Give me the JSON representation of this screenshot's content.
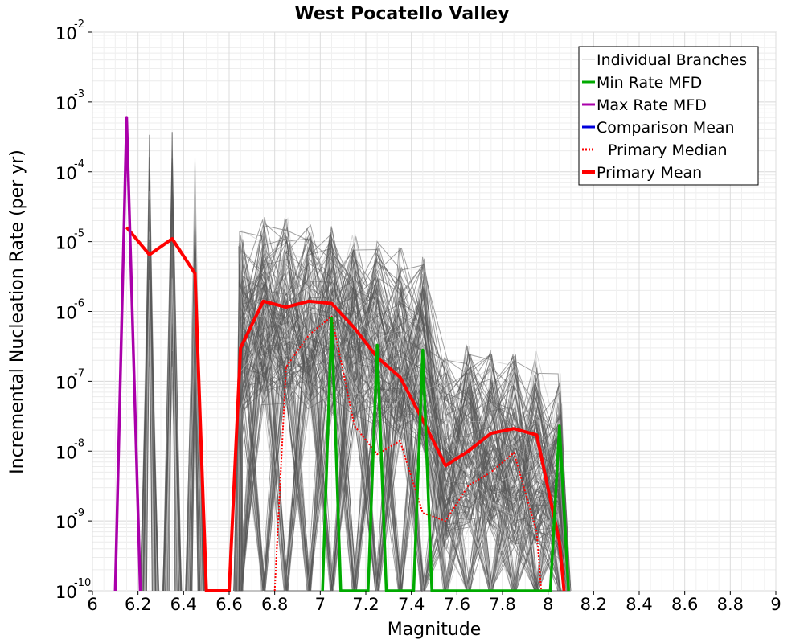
{
  "chart_data": {
    "type": "line",
    "title": "West Pocatello Valley",
    "xlabel": "Magnitude",
    "ylabel": "Incremental Nucleation Rate (per yr)",
    "xlim": [
      6,
      9
    ],
    "ylim": [
      1e-10,
      0.01
    ],
    "yscale": "log",
    "grid": true,
    "legend_position": "top-right",
    "x_ticks": [
      "6",
      "6.2",
      "6.4",
      "6.6",
      "6.8",
      "7",
      "7.2",
      "7.4",
      "7.6",
      "7.8",
      "8",
      "8.2",
      "8.4",
      "8.6",
      "8.8",
      "9"
    ],
    "y_ticks": [
      {
        "base": "10",
        "exp": "-10",
        "value": 1e-10
      },
      {
        "base": "10",
        "exp": "-9",
        "value": 1e-09
      },
      {
        "base": "10",
        "exp": "-8",
        "value": 1e-08
      },
      {
        "base": "10",
        "exp": "-7",
        "value": 1e-07
      },
      {
        "base": "10",
        "exp": "-6",
        "value": 1e-06
      },
      {
        "base": "10",
        "exp": "-5",
        "value": 1e-05
      },
      {
        "base": "10",
        "exp": "-4",
        "value": 0.0001
      },
      {
        "base": "10",
        "exp": "-3",
        "value": 0.001
      },
      {
        "base": "10",
        "exp": "-2",
        "value": 0.01
      }
    ],
    "legend": [
      {
        "name": "Individual Branches",
        "color": "#c8c8c8",
        "style": "thin"
      },
      {
        "name": "Min Rate MFD",
        "color": "#00aa00",
        "style": "solid"
      },
      {
        "name": "Max Rate MFD",
        "color": "#aa00aa",
        "style": "solid"
      },
      {
        "name": "Comparison Mean",
        "color": "#0000dd",
        "style": "solid"
      },
      {
        "name": "Primary Median",
        "color": "#ff0000",
        "style": "dotted"
      },
      {
        "name": "Primary Mean",
        "color": "#ff0000",
        "style": "thick"
      }
    ],
    "series": [
      {
        "name": "Primary Mean",
        "color": "#ff0000",
        "points": [
          [
            6.15,
            1.6e-05
          ],
          [
            6.25,
            6.5e-06
          ],
          [
            6.35,
            1.1e-05
          ],
          [
            6.45,
            3.5e-06
          ],
          [
            6.5,
            1e-10
          ],
          [
            6.6,
            1e-10
          ],
          [
            6.65,
            3e-07
          ],
          [
            6.75,
            1.4e-06
          ],
          [
            6.85,
            1.15e-06
          ],
          [
            6.95,
            1.4e-06
          ],
          [
            7.05,
            1.3e-06
          ],
          [
            7.15,
            5.8e-07
          ],
          [
            7.25,
            2.2e-07
          ],
          [
            7.35,
            1.15e-07
          ],
          [
            7.45,
            2.8e-08
          ],
          [
            7.55,
            6.2e-09
          ],
          [
            7.65,
            1e-08
          ],
          [
            7.75,
            1.8e-08
          ],
          [
            7.85,
            2.1e-08
          ],
          [
            7.95,
            1.7e-08
          ],
          [
            8.05,
            5e-10
          ],
          [
            8.07,
            1e-10
          ]
        ]
      },
      {
        "name": "Primary Median",
        "color": "#ff0000",
        "points": [
          [
            6.8,
            1e-10
          ],
          [
            6.85,
            1.6e-07
          ],
          [
            6.95,
            4.6e-07
          ],
          [
            7.05,
            8.5e-07
          ],
          [
            7.15,
            2.3e-08
          ],
          [
            7.25,
            9e-09
          ],
          [
            7.35,
            1.4e-08
          ],
          [
            7.45,
            1.3e-09
          ],
          [
            7.55,
            1e-09
          ],
          [
            7.65,
            3.2e-09
          ],
          [
            7.75,
            5e-09
          ],
          [
            7.85,
            9.5e-09
          ],
          [
            7.95,
            7e-10
          ],
          [
            7.97,
            1e-10
          ]
        ]
      },
      {
        "name": "Min Rate MFD",
        "color": "#00aa00",
        "points": [
          [
            7.01,
            1e-10
          ],
          [
            7.05,
            8e-07
          ],
          [
            7.09,
            1e-10
          ],
          [
            7.21,
            1e-10
          ],
          [
            7.25,
            3.3e-07
          ],
          [
            7.29,
            1e-10
          ],
          [
            7.41,
            1e-10
          ],
          [
            7.45,
            2.8e-07
          ],
          [
            7.49,
            1e-10
          ],
          [
            8.01,
            1e-10
          ],
          [
            8.05,
            2.3e-08
          ],
          [
            8.09,
            1e-10
          ]
        ]
      },
      {
        "name": "Max Rate MFD",
        "color": "#aa00aa",
        "points": [
          [
            6.1,
            1e-10
          ],
          [
            6.15,
            0.0006
          ],
          [
            6.21,
            1e-10
          ]
        ]
      }
    ],
    "branch_envelope": {
      "name": "Individual Branches",
      "color": "#555555",
      "peaks": [
        [
          6.25,
          0.0004
        ],
        [
          6.35,
          0.0004
        ],
        [
          6.45,
          0.0002
        ],
        [
          6.65,
          1.8e-05
        ],
        [
          6.75,
          2.8e-05
        ],
        [
          6.85,
          2.5e-05
        ],
        [
          6.95,
          2.5e-05
        ],
        [
          7.05,
          2e-05
        ],
        [
          7.15,
          1.6e-05
        ],
        [
          7.25,
          1.3e-05
        ],
        [
          7.35,
          9e-06
        ],
        [
          7.45,
          7e-06
        ],
        [
          7.55,
          2.5e-07
        ],
        [
          7.65,
          5e-07
        ],
        [
          7.75,
          4e-07
        ],
        [
          7.85,
          2.8e-07
        ],
        [
          7.95,
          3e-07
        ],
        [
          8.05,
          1.5e-07
        ]
      ]
    }
  }
}
